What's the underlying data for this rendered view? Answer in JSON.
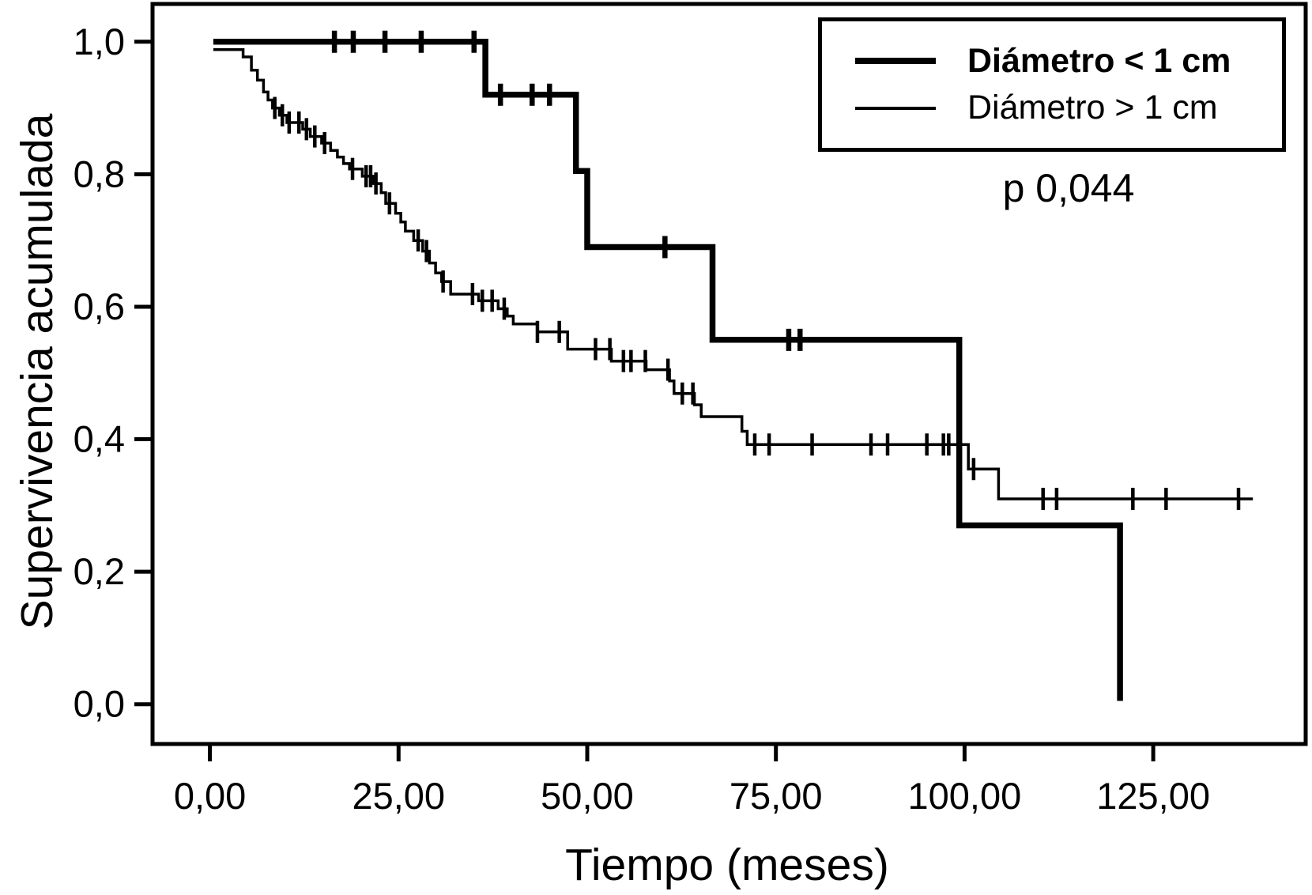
{
  "figure": {
    "background": "#ffffff",
    "foreground": "#000000"
  },
  "chart_data": {
    "type": "line",
    "subtype": "kaplan_meier_step_survival",
    "title": "",
    "xlabel": "Tiempo (meses)",
    "ylabel": "Supervivencia acumulada",
    "grid": false,
    "legend_position": "top-right",
    "xlim": [
      -7.6,
      145.2
    ],
    "ylim": [
      -0.06,
      1.057
    ],
    "x_ticks": {
      "values": [
        0,
        25,
        50,
        75,
        100,
        125
      ],
      "labels": [
        "0,00",
        "25,00",
        "50,00",
        "75,00",
        "100,00",
        "125,00"
      ]
    },
    "y_ticks": {
      "values": [
        0,
        0.2,
        0.4,
        0.6,
        0.8,
        1.0
      ],
      "labels": [
        "0,0",
        "0,2",
        "0,4",
        "0,6",
        "0,8",
        "1,0"
      ]
    },
    "annotations": [
      {
        "text": "p 0,044"
      }
    ],
    "series": [
      {
        "name": "Diámetro < 1 cm",
        "style": "thick",
        "bold_label": true,
        "steps": [
          [
            0.45,
            1.0
          ],
          [
            36.5,
            0.92
          ],
          [
            48.5,
            0.805
          ],
          [
            50.0,
            0.69
          ],
          [
            66.6,
            0.55
          ],
          [
            99.3,
            0.27
          ],
          [
            120.6,
            0.005
          ]
        ],
        "end_time": 120.6,
        "censor_times": [
          16.5,
          19.0,
          23.2,
          28.0,
          35.0,
          38.5,
          42.7,
          45.0,
          60.3,
          76.7,
          78.2
        ]
      },
      {
        "name": "Diámetro > 1 cm",
        "style": "thin",
        "bold_label": false,
        "steps": [
          [
            0.45,
            0.988
          ],
          [
            4.4,
            0.977
          ],
          [
            5.5,
            0.957
          ],
          [
            6.3,
            0.942
          ],
          [
            7.1,
            0.924
          ],
          [
            7.7,
            0.912
          ],
          [
            8.3,
            0.9
          ],
          [
            9.2,
            0.889
          ],
          [
            10.2,
            0.878
          ],
          [
            12.3,
            0.868
          ],
          [
            13.3,
            0.857
          ],
          [
            14.8,
            0.847
          ],
          [
            16.0,
            0.836
          ],
          [
            16.9,
            0.826
          ],
          [
            17.7,
            0.816
          ],
          [
            18.5,
            0.808
          ],
          [
            20.2,
            0.797
          ],
          [
            21.6,
            0.786
          ],
          [
            22.7,
            0.772
          ],
          [
            23.3,
            0.756
          ],
          [
            24.6,
            0.741
          ],
          [
            25.3,
            0.728
          ],
          [
            25.9,
            0.714
          ],
          [
            27.0,
            0.7
          ],
          [
            28.2,
            0.684
          ],
          [
            29.1,
            0.666
          ],
          [
            29.9,
            0.651
          ],
          [
            30.7,
            0.638
          ],
          [
            31.9,
            0.619
          ],
          [
            35.6,
            0.609
          ],
          [
            38.2,
            0.597
          ],
          [
            39.4,
            0.586
          ],
          [
            40.2,
            0.574
          ],
          [
            43.4,
            0.562
          ],
          [
            47.4,
            0.536
          ],
          [
            53.2,
            0.518
          ],
          [
            57.8,
            0.505
          ],
          [
            60.9,
            0.488
          ],
          [
            61.5,
            0.469
          ],
          [
            64.2,
            0.452
          ],
          [
            65.1,
            0.434
          ],
          [
            70.5,
            0.412
          ],
          [
            71.2,
            0.392
          ],
          [
            100.5,
            0.355
          ],
          [
            104.5,
            0.31
          ]
        ],
        "end_time": 138.2,
        "censor_times": [
          8.6,
          9.6,
          10.5,
          11.8,
          12.8,
          13.9,
          15.2,
          18.9,
          20.7,
          21.3,
          22.0,
          23.8,
          27.6,
          28.7,
          30.9,
          34.8,
          36.1,
          37.4,
          39.0,
          43.4,
          46.3,
          51.1,
          53.0,
          54.8,
          55.8,
          57.7,
          60.7,
          62.6,
          64.0,
          72.2,
          74.1,
          79.8,
          87.6,
          89.8,
          95.0,
          97.2,
          97.9,
          101.2,
          110.4,
          112.2,
          122.3,
          126.7,
          136.3
        ]
      }
    ]
  }
}
